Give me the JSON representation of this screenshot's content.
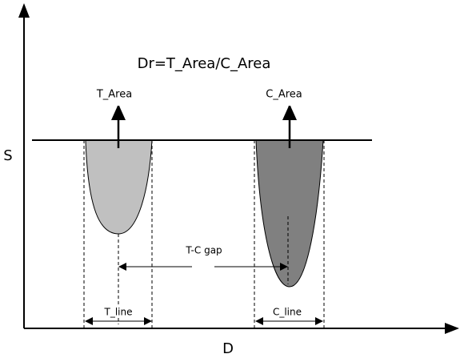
{
  "formula": "Dr=T_Area/C_Area",
  "axes": {
    "y_label": "S",
    "x_label": "D"
  },
  "peaks": [
    {
      "area_label": "T_Area",
      "line_label": "T_line"
    },
    {
      "area_label": "C_Area",
      "line_label": "C_line"
    }
  ],
  "gap_label": "T-C gap"
}
